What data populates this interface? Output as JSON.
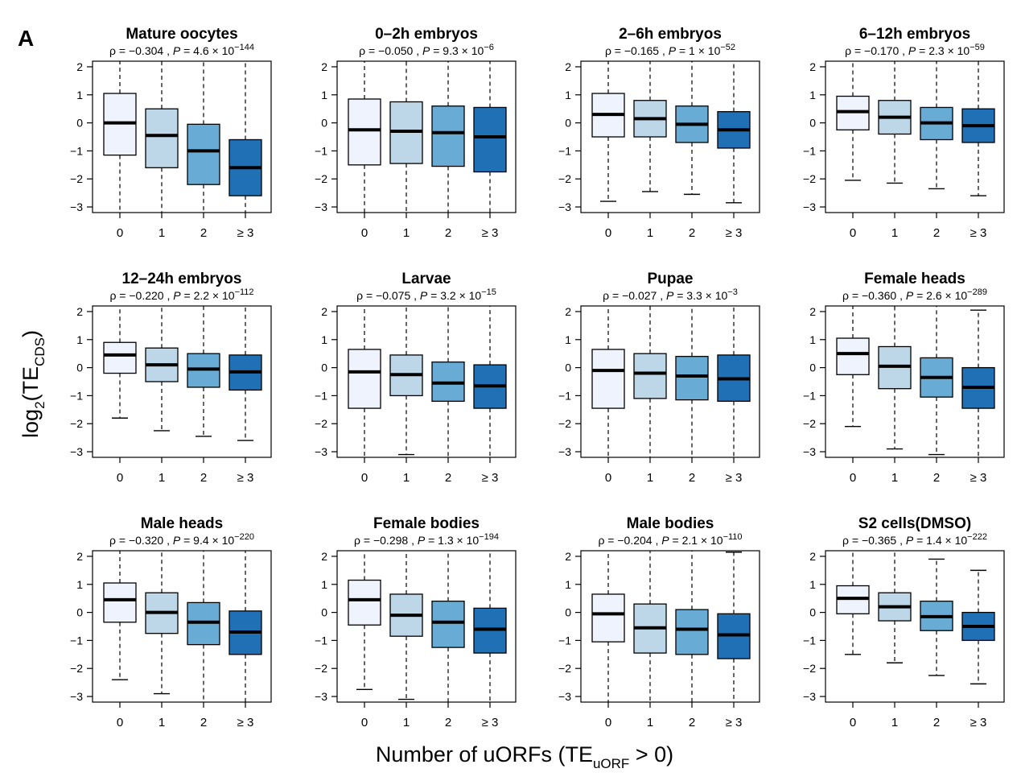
{
  "panel_label": "A",
  "y_axis_label": {
    "main": "log",
    "sub1": "2",
    "paren_open": "(TE",
    "sub2": "CDS",
    "paren_close": ")"
  },
  "x_axis_label": {
    "main": "Number of uORFs (TE",
    "sub": "uORF",
    "tail": " > 0)"
  },
  "colors": [
    "#eef3fd",
    "#bdd6e8",
    "#68acd6",
    "#2070b5"
  ],
  "chart_data": {
    "type": "boxplot",
    "categories": [
      "0",
      "1",
      "2",
      "≥ 3"
    ],
    "ylim": [
      -3.2,
      2.2
    ],
    "yticks": [
      2,
      1,
      0,
      -1,
      -2,
      -3
    ],
    "panels": [
      {
        "title": "Mature oocytes",
        "rho": "ρ = −0.304 ,",
        "p_label": "P",
        "p_mant": " = 4.6 × 10",
        "p_exp": "−144",
        "boxes": [
          {
            "whisker_low": -3.2,
            "q1": -1.15,
            "median": 0.0,
            "q3": 1.05,
            "whisker_high": 2.2,
            "cap_low": false,
            "cap_high": false
          },
          {
            "whisker_low": -3.2,
            "q1": -1.6,
            "median": -0.45,
            "q3": 0.5,
            "whisker_high": 2.2,
            "cap_low": false,
            "cap_high": false
          },
          {
            "whisker_low": -3.2,
            "q1": -2.2,
            "median": -1.0,
            "q3": -0.05,
            "whisker_high": 2.2,
            "cap_low": false,
            "cap_high": false
          },
          {
            "whisker_low": -3.2,
            "q1": -2.6,
            "median": -1.6,
            "q3": -0.6,
            "whisker_high": 2.2,
            "cap_low": false,
            "cap_high": false
          }
        ]
      },
      {
        "title": "0–2h embryos",
        "rho": "ρ = −0.050 ,",
        "p_label": "P",
        "p_mant": " = 9.3 × 10",
        "p_exp": "−6",
        "boxes": [
          {
            "whisker_low": -3.2,
            "q1": -1.5,
            "median": -0.25,
            "q3": 0.85,
            "whisker_high": 2.2,
            "cap_low": false,
            "cap_high": false
          },
          {
            "whisker_low": -3.2,
            "q1": -1.45,
            "median": -0.3,
            "q3": 0.75,
            "whisker_high": 2.2,
            "cap_low": false,
            "cap_high": false
          },
          {
            "whisker_low": -3.2,
            "q1": -1.55,
            "median": -0.35,
            "q3": 0.6,
            "whisker_high": 2.2,
            "cap_low": false,
            "cap_high": false
          },
          {
            "whisker_low": -3.2,
            "q1": -1.75,
            "median": -0.5,
            "q3": 0.55,
            "whisker_high": 2.2,
            "cap_low": false,
            "cap_high": false
          }
        ]
      },
      {
        "title": "2–6h embryos",
        "rho": "ρ = −0.165 ,",
        "p_label": "P",
        "p_mant": " = 1 × 10",
        "p_exp": "−52",
        "boxes": [
          {
            "whisker_low": -2.8,
            "q1": -0.5,
            "median": 0.3,
            "q3": 1.05,
            "whisker_high": 2.2,
            "cap_low": true,
            "cap_high": false
          },
          {
            "whisker_low": -2.45,
            "q1": -0.5,
            "median": 0.15,
            "q3": 0.8,
            "whisker_high": 2.2,
            "cap_low": true,
            "cap_high": false
          },
          {
            "whisker_low": -2.55,
            "q1": -0.7,
            "median": -0.05,
            "q3": 0.6,
            "whisker_high": 2.2,
            "cap_low": true,
            "cap_high": false
          },
          {
            "whisker_low": -2.85,
            "q1": -0.9,
            "median": -0.25,
            "q3": 0.4,
            "whisker_high": 2.2,
            "cap_low": true,
            "cap_high": false
          }
        ]
      },
      {
        "title": "6–12h embryos",
        "rho": "ρ = −0.170 ,",
        "p_label": "P",
        "p_mant": " = 2.3 × 10",
        "p_exp": "−59",
        "boxes": [
          {
            "whisker_low": -2.05,
            "q1": -0.25,
            "median": 0.4,
            "q3": 0.95,
            "whisker_high": 2.2,
            "cap_low": true,
            "cap_high": false
          },
          {
            "whisker_low": -2.15,
            "q1": -0.4,
            "median": 0.2,
            "q3": 0.8,
            "whisker_high": 2.2,
            "cap_low": true,
            "cap_high": false
          },
          {
            "whisker_low": -2.35,
            "q1": -0.6,
            "median": 0.0,
            "q3": 0.55,
            "whisker_high": 2.2,
            "cap_low": true,
            "cap_high": false
          },
          {
            "whisker_low": -2.6,
            "q1": -0.7,
            "median": -0.1,
            "q3": 0.5,
            "whisker_high": 2.2,
            "cap_low": true,
            "cap_high": false
          }
        ]
      },
      {
        "title": "12–24h embryos",
        "rho": "ρ = −0.220 ,",
        "p_label": "P",
        "p_mant": " = 2.2 × 10",
        "p_exp": "−112",
        "boxes": [
          {
            "whisker_low": -1.8,
            "q1": -0.2,
            "median": 0.45,
            "q3": 0.9,
            "whisker_high": 2.2,
            "cap_low": true,
            "cap_high": false
          },
          {
            "whisker_low": -2.25,
            "q1": -0.5,
            "median": 0.1,
            "q3": 0.7,
            "whisker_high": 2.2,
            "cap_low": true,
            "cap_high": false
          },
          {
            "whisker_low": -2.45,
            "q1": -0.7,
            "median": -0.05,
            "q3": 0.5,
            "whisker_high": 2.2,
            "cap_low": true,
            "cap_high": false
          },
          {
            "whisker_low": -2.6,
            "q1": -0.8,
            "median": -0.15,
            "q3": 0.45,
            "whisker_high": 2.2,
            "cap_low": true,
            "cap_high": false
          }
        ]
      },
      {
        "title": "Larvae",
        "rho": "ρ = −0.075 ,",
        "p_label": "P",
        "p_mant": " = 3.2 × 10",
        "p_exp": "−15",
        "boxes": [
          {
            "whisker_low": -3.2,
            "q1": -1.45,
            "median": -0.15,
            "q3": 0.65,
            "whisker_high": 2.2,
            "cap_low": false,
            "cap_high": false
          },
          {
            "whisker_low": -3.1,
            "q1": -1.0,
            "median": -0.25,
            "q3": 0.45,
            "whisker_high": 2.2,
            "cap_low": true,
            "cap_high": false
          },
          {
            "whisker_low": -3.2,
            "q1": -1.2,
            "median": -0.55,
            "q3": 0.2,
            "whisker_high": 2.2,
            "cap_low": false,
            "cap_high": false
          },
          {
            "whisker_low": -3.2,
            "q1": -1.45,
            "median": -0.65,
            "q3": 0.1,
            "whisker_high": 2.2,
            "cap_low": false,
            "cap_high": false
          }
        ]
      },
      {
        "title": "Pupae",
        "rho": "ρ = −0.027 ,",
        "p_label": "P",
        "p_mant": " = 3.3 × 10",
        "p_exp": "−3",
        "boxes": [
          {
            "whisker_low": -3.2,
            "q1": -1.45,
            "median": -0.1,
            "q3": 0.65,
            "whisker_high": 2.2,
            "cap_low": false,
            "cap_high": false
          },
          {
            "whisker_low": -3.2,
            "q1": -1.1,
            "median": -0.2,
            "q3": 0.5,
            "whisker_high": 2.2,
            "cap_low": false,
            "cap_high": false
          },
          {
            "whisker_low": -3.2,
            "q1": -1.15,
            "median": -0.3,
            "q3": 0.4,
            "whisker_high": 2.2,
            "cap_low": false,
            "cap_high": false
          },
          {
            "whisker_low": -3.2,
            "q1": -1.2,
            "median": -0.4,
            "q3": 0.45,
            "whisker_high": 2.2,
            "cap_low": false,
            "cap_high": false
          }
        ]
      },
      {
        "title": "Female heads",
        "rho": "ρ = −0.360 ,",
        "p_label": "P",
        "p_mant": " = 2.6 × 10",
        "p_exp": "−289",
        "boxes": [
          {
            "whisker_low": -2.1,
            "q1": -0.25,
            "median": 0.5,
            "q3": 1.05,
            "whisker_high": 2.2,
            "cap_low": true,
            "cap_high": false
          },
          {
            "whisker_low": -2.9,
            "q1": -0.75,
            "median": 0.05,
            "q3": 0.75,
            "whisker_high": 2.2,
            "cap_low": true,
            "cap_high": false
          },
          {
            "whisker_low": -3.1,
            "q1": -1.05,
            "median": -0.35,
            "q3": 0.35,
            "whisker_high": 2.2,
            "cap_low": true,
            "cap_high": false
          },
          {
            "whisker_low": -3.2,
            "q1": -1.45,
            "median": -0.7,
            "q3": 0.0,
            "whisker_high": 2.05,
            "cap_low": false,
            "cap_high": true
          }
        ]
      },
      {
        "title": "Male heads",
        "rho": "ρ = −0.320 ,",
        "p_label": "P",
        "p_mant": " = 9.4 × 10",
        "p_exp": "−220",
        "boxes": [
          {
            "whisker_low": -2.4,
            "q1": -0.35,
            "median": 0.45,
            "q3": 1.05,
            "whisker_high": 2.2,
            "cap_low": true,
            "cap_high": false
          },
          {
            "whisker_low": -2.9,
            "q1": -0.75,
            "median": 0.0,
            "q3": 0.7,
            "whisker_high": 2.2,
            "cap_low": true,
            "cap_high": false
          },
          {
            "whisker_low": -3.2,
            "q1": -1.15,
            "median": -0.35,
            "q3": 0.35,
            "whisker_high": 2.2,
            "cap_low": false,
            "cap_high": false
          },
          {
            "whisker_low": -3.2,
            "q1": -1.5,
            "median": -0.7,
            "q3": 0.05,
            "whisker_high": 2.2,
            "cap_low": false,
            "cap_high": false
          }
        ]
      },
      {
        "title": "Female bodies",
        "rho": "ρ = −0.298 ,",
        "p_label": "P",
        "p_mant": " = 1.3 × 10",
        "p_exp": "−194",
        "boxes": [
          {
            "whisker_low": -2.75,
            "q1": -0.45,
            "median": 0.45,
            "q3": 1.15,
            "whisker_high": 2.2,
            "cap_low": true,
            "cap_high": false
          },
          {
            "whisker_low": -3.1,
            "q1": -0.85,
            "median": -0.1,
            "q3": 0.65,
            "whisker_high": 2.2,
            "cap_low": true,
            "cap_high": false
          },
          {
            "whisker_low": -3.2,
            "q1": -1.25,
            "median": -0.35,
            "q3": 0.4,
            "whisker_high": 2.2,
            "cap_low": false,
            "cap_high": false
          },
          {
            "whisker_low": -3.2,
            "q1": -1.45,
            "median": -0.6,
            "q3": 0.15,
            "whisker_high": 2.2,
            "cap_low": false,
            "cap_high": false
          }
        ]
      },
      {
        "title": "Male bodies",
        "rho": "ρ = −0.204 ,",
        "p_label": "P",
        "p_mant": " = 2.1 × 10",
        "p_exp": "−110",
        "boxes": [
          {
            "whisker_low": -3.2,
            "q1": -1.05,
            "median": -0.05,
            "q3": 0.65,
            "whisker_high": 2.2,
            "cap_low": false,
            "cap_high": false
          },
          {
            "whisker_low": -3.2,
            "q1": -1.45,
            "median": -0.55,
            "q3": 0.3,
            "whisker_high": 2.2,
            "cap_low": false,
            "cap_high": false
          },
          {
            "whisker_low": -3.2,
            "q1": -1.5,
            "median": -0.6,
            "q3": 0.1,
            "whisker_high": 2.2,
            "cap_low": false,
            "cap_high": false
          },
          {
            "whisker_low": -3.2,
            "q1": -1.65,
            "median": -0.8,
            "q3": -0.05,
            "whisker_high": 2.15,
            "cap_low": false,
            "cap_high": true
          }
        ]
      },
      {
        "title": "S2 cells(DMSO)",
        "rho": "ρ = −0.365 ,",
        "p_label": "P",
        "p_mant": " = 1.4 × 10",
        "p_exp": "−222",
        "boxes": [
          {
            "whisker_low": -1.5,
            "q1": -0.05,
            "median": 0.5,
            "q3": 0.95,
            "whisker_high": 2.2,
            "cap_low": true,
            "cap_high": false
          },
          {
            "whisker_low": -1.8,
            "q1": -0.3,
            "median": 0.2,
            "q3": 0.7,
            "whisker_high": 2.2,
            "cap_low": true,
            "cap_high": false
          },
          {
            "whisker_low": -2.25,
            "q1": -0.65,
            "median": -0.15,
            "q3": 0.4,
            "whisker_high": 1.9,
            "cap_low": true,
            "cap_high": true
          },
          {
            "whisker_low": -2.55,
            "q1": -1.0,
            "median": -0.5,
            "q3": 0.0,
            "whisker_high": 1.5,
            "cap_low": true,
            "cap_high": true
          }
        ]
      }
    ]
  }
}
